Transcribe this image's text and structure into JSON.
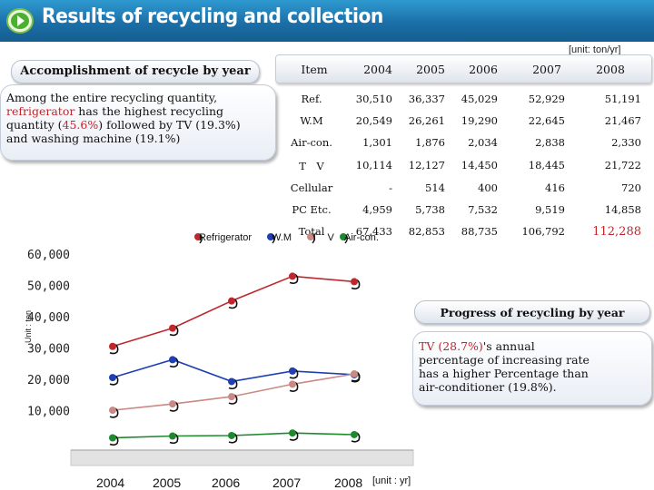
{
  "header": {
    "title": "Results of recycling and collection"
  },
  "unit_top": "[unit: ton/yr]",
  "accomplishment_title": "Accomplishment of recycle by year",
  "intro": {
    "t1": "Among the entire recycling quantity,",
    "t2": "refrigerator",
    "t3": " has the highest recycling quantity (",
    "t4": "45.6%",
    "t5": ") followed by TV (19.3%) and washing machine (19.1%)"
  },
  "table": {
    "headers": [
      "Item",
      "2004",
      "2005",
      "2006",
      "2007",
      "2008"
    ],
    "rows": [
      {
        "label": "Ref.",
        "values": [
          "30,510",
          "36,337",
          "45,029",
          "52,929",
          "51,191"
        ]
      },
      {
        "label": "W.M",
        "values": [
          "20,549",
          "26,261",
          "19,290",
          "22,645",
          "21,467"
        ]
      },
      {
        "label": "Air-con.",
        "values": [
          "1,301",
          "1,876",
          "2,034",
          "2,838",
          "2,330"
        ]
      },
      {
        "label": "T　V",
        "values": [
          "10,114",
          "12,127",
          "14,450",
          "18,445",
          "21,722"
        ]
      },
      {
        "label": "Cellular",
        "values": [
          "-",
          "514",
          "400",
          "416",
          "720"
        ]
      },
      {
        "label": "PC Etc.",
        "values": [
          "4,959",
          "5,738",
          "7,532",
          "9,519",
          "14,858"
        ]
      },
      {
        "label": "Total",
        "values": [
          "67,433",
          "82,853",
          "88,735",
          "106,792",
          "112,288"
        ]
      }
    ],
    "highlight_color": "#c0272d"
  },
  "progress_title": "Progress of recycling by year",
  "tv_note": {
    "t1": "TV (28.7%)",
    "t2": "'s annual percentage of  increasing rate has a higher Percentage than air-conditioner (19.8%)."
  },
  "chart_data": {
    "type": "line",
    "categories": [
      "2004",
      "2005",
      "2006",
      "2007",
      "2008"
    ],
    "series": [
      {
        "name": "Refrigerator",
        "color": "#c0272d",
        "values": [
          30510,
          36337,
          45029,
          52929,
          51191
        ]
      },
      {
        "name": "W.M",
        "color": "#1f3fb5",
        "values": [
          20549,
          26261,
          19290,
          22645,
          21467
        ]
      },
      {
        "name": "T　V",
        "color": "#c98a86",
        "values": [
          10114,
          12127,
          14450,
          18445,
          21722
        ]
      },
      {
        "name": "Air-con.",
        "color": "#1e8a2e",
        "values": [
          1301,
          1876,
          2034,
          2838,
          2330
        ]
      }
    ],
    "ylabel": "Unit : ton",
    "yticks": [
      "10,000",
      "20,000",
      "30,000",
      "40,000",
      "50,000",
      "60,000"
    ],
    "ytick_values": [
      10000,
      20000,
      30000,
      40000,
      50000,
      60000
    ],
    "ylim": [
      0,
      60000
    ],
    "x_unit": "[unit : yr]",
    "legend_position": "top"
  }
}
